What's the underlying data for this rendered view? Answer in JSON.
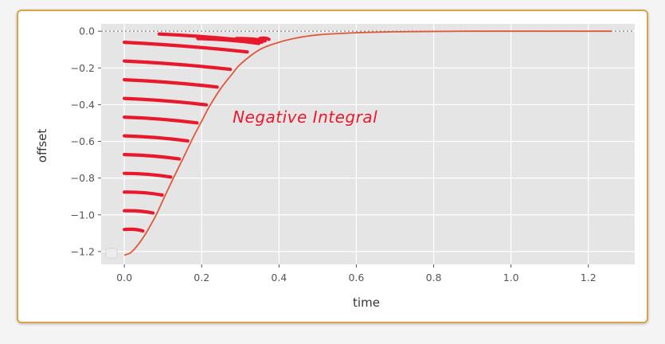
{
  "chart_data": {
    "type": "line",
    "title": "",
    "xlabel": "time",
    "ylabel": "offset",
    "xlim": [
      -0.06,
      1.32
    ],
    "ylim": [
      -1.27,
      0.04
    ],
    "xticks": [
      "0.0",
      "0.2",
      "0.4",
      "0.6",
      "0.8",
      "1.0",
      "1.2"
    ],
    "yticks": [
      "0.0",
      "−0.2",
      "−0.4",
      "−0.6",
      "−0.8",
      "−1.0",
      "−1.2"
    ],
    "grid": true,
    "reference_line": {
      "y": 0.0,
      "style": "dotted"
    },
    "series": [
      {
        "x": [
          0.0,
          0.02,
          0.05,
          0.08,
          0.1,
          0.12,
          0.15,
          0.18,
          0.2,
          0.22,
          0.25,
          0.28,
          0.3,
          0.35,
          0.4,
          0.45,
          0.5,
          0.6,
          0.7,
          0.8,
          0.9,
          1.0,
          1.1,
          1.2,
          1.26
        ],
        "y": [
          -1.22,
          -1.2,
          -1.12,
          -1.01,
          -0.92,
          -0.83,
          -0.7,
          -0.57,
          -0.49,
          -0.41,
          -0.31,
          -0.23,
          -0.18,
          -0.1,
          -0.06,
          -0.035,
          -0.02,
          -0.008,
          -0.003,
          -0.001,
          0.0,
          0.0,
          0.0,
          0.0,
          0.0
        ]
      }
    ],
    "annotations": [
      {
        "text": "Negative Integral",
        "x": 0.28,
        "y": -0.48
      }
    ]
  }
}
